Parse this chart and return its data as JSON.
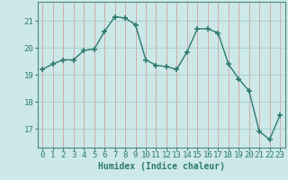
{
  "x": [
    0,
    1,
    2,
    3,
    4,
    5,
    6,
    7,
    8,
    9,
    10,
    11,
    12,
    13,
    14,
    15,
    16,
    17,
    18,
    19,
    20,
    21,
    22,
    23
  ],
  "y": [
    19.2,
    19.4,
    19.55,
    19.55,
    19.9,
    19.95,
    20.6,
    21.15,
    21.1,
    20.85,
    19.55,
    19.35,
    19.3,
    19.2,
    19.85,
    20.7,
    20.7,
    20.55,
    19.4,
    18.85,
    18.4,
    16.9,
    16.6,
    17.5
  ],
  "line_color": "#2d7a6e",
  "marker": "+",
  "markersize": 4,
  "markeredgewidth": 1.2,
  "linewidth": 1.0,
  "bg_color": "#cce8e8",
  "grid_x_color": "#d4a0a0",
  "grid_y_color": "#a8cccc",
  "xlabel": "Humidex (Indice chaleur)",
  "xlabel_fontsize": 7,
  "ylabel_ticks": [
    17,
    18,
    19,
    20,
    21
  ],
  "xtick_labels": [
    "0",
    "1",
    "2",
    "3",
    "4",
    "5",
    "6",
    "7",
    "8",
    "9",
    "10",
    "11",
    "12",
    "13",
    "14",
    "15",
    "16",
    "17",
    "18",
    "19",
    "20",
    "21",
    "22",
    "23"
  ],
  "ylim": [
    16.3,
    21.7
  ],
  "xlim": [
    -0.5,
    23.5
  ],
  "tick_fontsize": 6.5,
  "spine_color": "#4a8a7a"
}
